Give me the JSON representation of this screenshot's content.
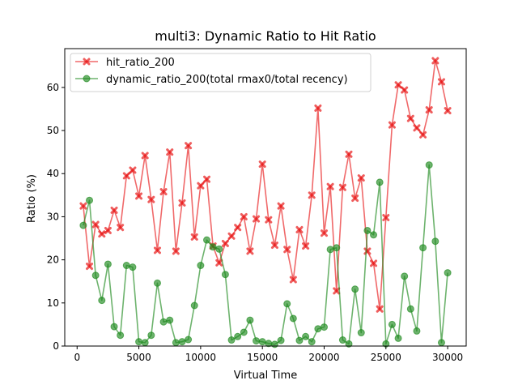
{
  "chart_data": {
    "type": "line",
    "title": "multi3: Dynamic Ratio to Hit Ratio",
    "xlabel": "Virtual Time",
    "ylabel": "Ratio (%)",
    "xlim": [
      -1000,
      31500
    ],
    "ylim": [
      0,
      69
    ],
    "xticks": [
      0,
      5000,
      10000,
      15000,
      20000,
      25000,
      30000
    ],
    "xtick_labels": [
      "0",
      "5000",
      "10000",
      "15000",
      "20000",
      "25000",
      "30000"
    ],
    "yticks": [
      0,
      10,
      20,
      30,
      40,
      50,
      60
    ],
    "ytick_labels": [
      "0",
      "10",
      "20",
      "30",
      "40",
      "50",
      "60"
    ],
    "grid": false,
    "legend_position": "top-left",
    "x": [
      500,
      1000,
      1500,
      2000,
      2500,
      3000,
      3500,
      4000,
      4500,
      5000,
      5500,
      6000,
      6500,
      7000,
      7500,
      8000,
      8500,
      9000,
      9500,
      10000,
      10500,
      11000,
      11500,
      12000,
      12500,
      13000,
      13500,
      14000,
      14500,
      15000,
      15500,
      16000,
      16500,
      17000,
      17500,
      18000,
      18500,
      19000,
      19500,
      20000,
      20500,
      21000,
      21500,
      22000,
      22500,
      23000,
      23500,
      24000,
      24500,
      25000,
      25500,
      26000,
      26500,
      27000,
      27500,
      28000,
      28500,
      29000,
      29500,
      30000
    ],
    "series": [
      {
        "name": "hit_ratio_200",
        "color": "#e8191a",
        "marker": "x",
        "values": [
          32.5,
          18.5,
          28.2,
          26.0,
          26.8,
          31.5,
          27.5,
          39.5,
          40.8,
          34.8,
          44.2,
          34.0,
          22.2,
          35.8,
          45.0,
          22.0,
          33.2,
          46.5,
          25.3,
          37.2,
          38.7,
          23.2,
          19.3,
          23.8,
          25.5,
          27.5,
          30.0,
          22.0,
          29.5,
          42.2,
          29.3,
          23.4,
          32.5,
          22.4,
          15.4,
          27.0,
          23.2,
          35.0,
          55.2,
          26.2,
          37.0,
          12.8,
          36.8,
          44.5,
          34.3,
          39.0,
          22.0,
          19.2,
          8.6,
          29.8,
          51.3,
          60.6,
          59.4,
          52.8,
          50.6,
          49.0,
          54.8,
          66.2,
          61.3,
          54.6
        ]
      },
      {
        "name": "dynamic_ratio_200(total rmax0/total recency)",
        "color": "#1f8a1f",
        "marker": "o",
        "values": [
          28.0,
          33.8,
          16.4,
          10.6,
          19.0,
          4.5,
          2.5,
          18.7,
          18.3,
          1.0,
          0.8,
          2.5,
          14.6,
          5.6,
          6.0,
          0.8,
          1.0,
          1.5,
          9.4,
          18.7,
          24.6,
          23.0,
          22.5,
          16.6,
          1.4,
          2.2,
          3.2,
          6.0,
          1.2,
          1.0,
          0.6,
          0.4,
          1.3,
          9.8,
          6.4,
          1.3,
          2.2,
          1.0,
          4.0,
          4.4,
          22.4,
          22.8,
          1.4,
          0.5,
          13.2,
          3.1,
          26.8,
          25.8,
          38.0,
          0.5,
          5.0,
          1.8,
          16.2,
          8.6,
          3.5,
          22.8,
          42.0,
          24.3,
          0.8,
          17.0
        ]
      }
    ]
  }
}
